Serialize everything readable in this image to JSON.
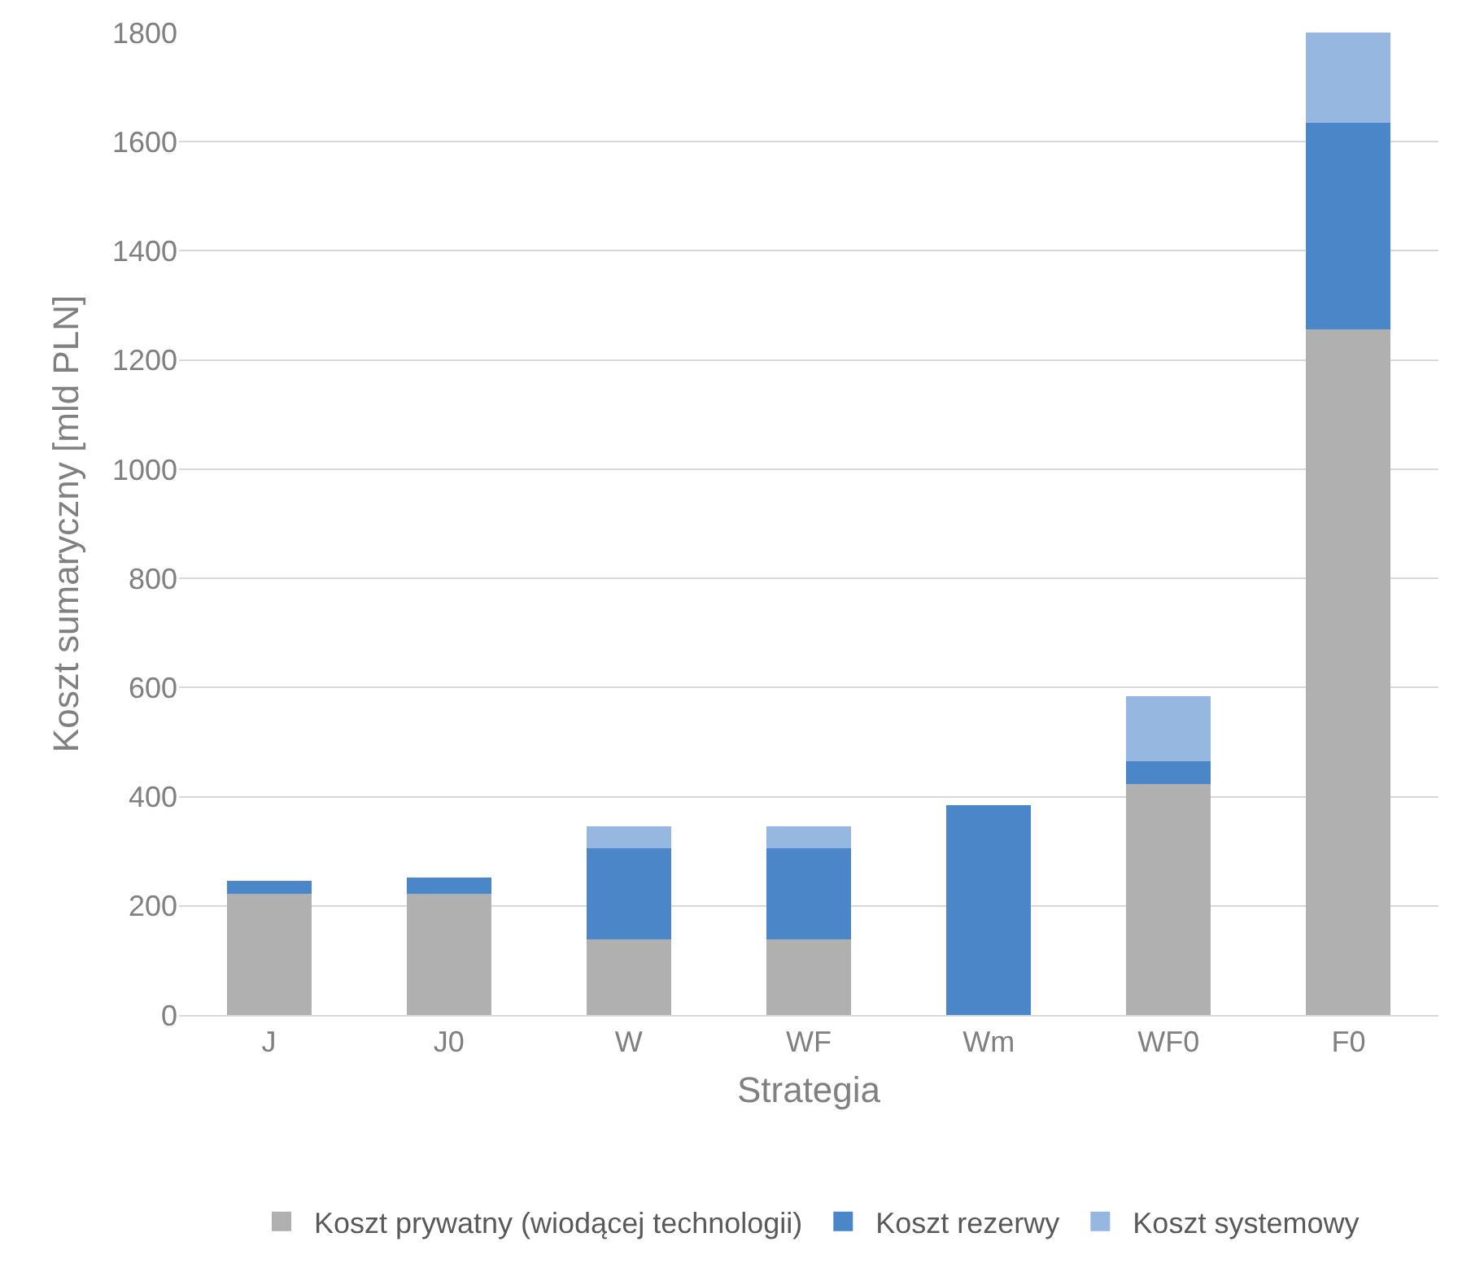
{
  "chart_data": {
    "type": "bar",
    "stacked": true,
    "xlabel": "Strategia",
    "ylabel": "Koszt sumaryczny [mld PLN]",
    "categories": [
      "J",
      "J0",
      "W",
      "WF",
      "Wm",
      "WF0",
      "F0"
    ],
    "series": [
      {
        "name": "Koszt prywatny (wiodącej technologii)",
        "color": "#b0b0b0",
        "values": [
          222,
          222,
          139,
          139,
          0,
          423,
          1256
        ]
      },
      {
        "name": "Koszt rezerwy",
        "color": "#4a86c8",
        "values": [
          24,
          30,
          167,
          167,
          385,
          42,
          378
        ]
      },
      {
        "name": "Koszt systemowy",
        "color": "#95b7e0",
        "values": [
          0,
          0,
          40,
          40,
          0,
          119,
          166
        ]
      }
    ],
    "ylim": [
      0,
      1800
    ],
    "yticks": [
      0,
      200,
      400,
      600,
      800,
      1000,
      1200,
      1400,
      1600,
      1800
    ],
    "grid": "y",
    "legend": "bottom"
  }
}
